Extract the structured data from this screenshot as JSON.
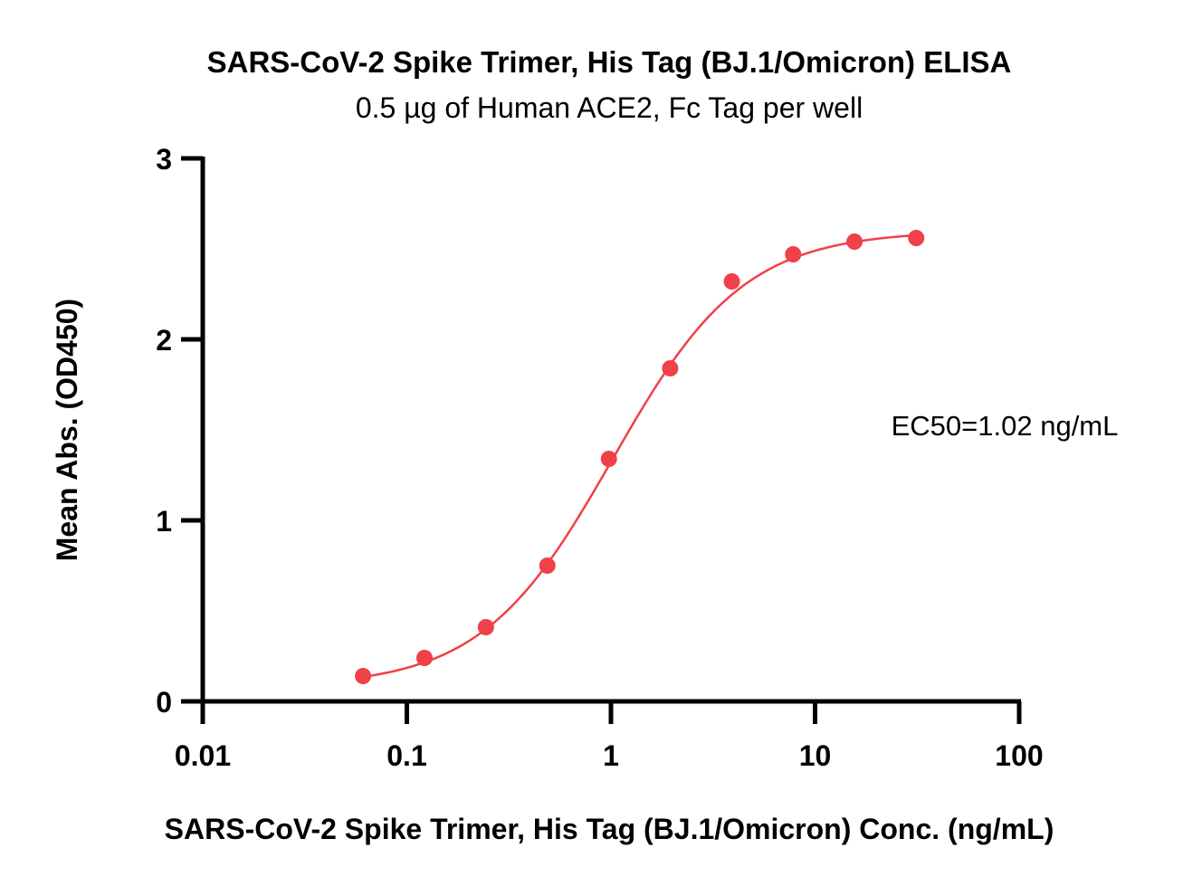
{
  "chart_data": {
    "type": "scatter",
    "title": "SARS-CoV-2 Spike Trimer, His Tag (BJ.1/Omicron) ELISA",
    "subtitle": "0.5 µg of Human ACE2, Fc Tag per well",
    "xlabel": "SARS-CoV-2 Spike Trimer, His Tag (BJ.1/Omicron) Conc. (ng/mL)",
    "ylabel": "Mean Abs. (OD450)",
    "x_scale": "log",
    "xlim": [
      0.01,
      100
    ],
    "ylim": [
      0,
      3
    ],
    "x_ticks": [
      {
        "value": 0.01,
        "label": "0.01"
      },
      {
        "value": 0.1,
        "label": "0.1"
      },
      {
        "value": 1,
        "label": "1"
      },
      {
        "value": 10,
        "label": "10"
      },
      {
        "value": 100,
        "label": "100"
      }
    ],
    "y_ticks": [
      {
        "value": 0,
        "label": "0"
      },
      {
        "value": 1,
        "label": "1"
      },
      {
        "value": 2,
        "label": "2"
      },
      {
        "value": 3,
        "label": "3"
      }
    ],
    "grid": false,
    "legend": "none",
    "annotation": "EC50=1.02 ng/mL",
    "color": "#f04048",
    "series": [
      {
        "x": [
          0.061,
          0.122,
          0.244,
          0.488,
          0.977,
          1.95,
          3.91,
          7.81,
          15.6,
          31.3
        ],
        "y": [
          0.14,
          0.24,
          0.41,
          0.75,
          1.34,
          1.84,
          2.32,
          2.47,
          2.54,
          2.56
        ]
      }
    ],
    "fit": {
      "model": "4PL",
      "bottom": 0.08,
      "top": 2.6,
      "ec50": 1.02,
      "hill": 1.35
    }
  }
}
